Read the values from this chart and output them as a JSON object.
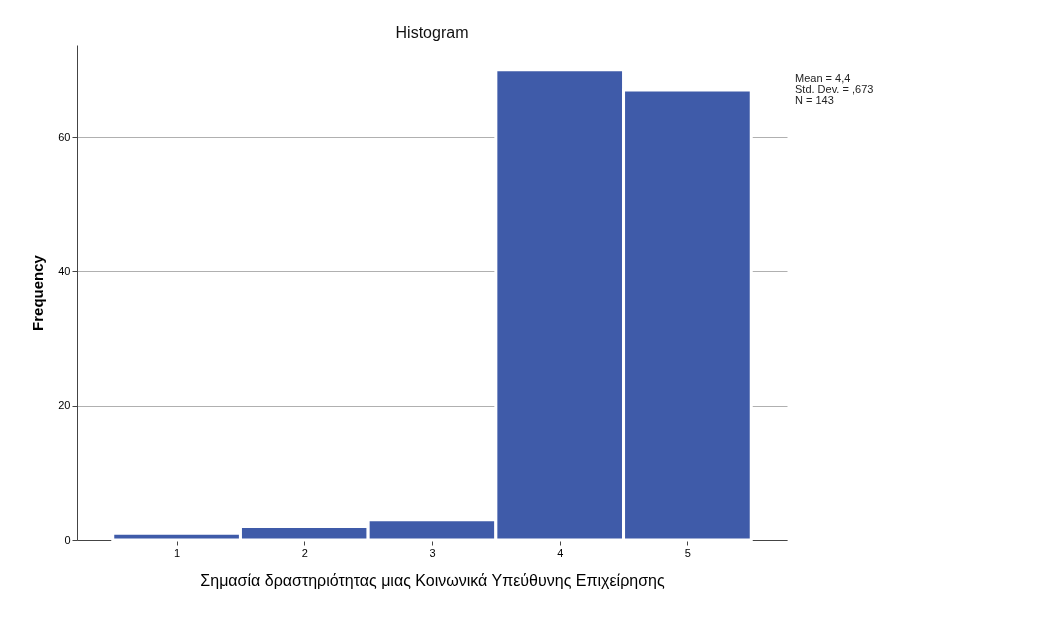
{
  "chart_data": {
    "type": "histogram",
    "title": "Histogram",
    "xlabel": "Σημασία δραστηριότητας μιας Κοινωνικά Υπεύθυνης Επιχείρησης",
    "ylabel": "Frequency",
    "bins": [
      0.5,
      1.5,
      2.5,
      3.5,
      4.5,
      5.5
    ],
    "values": [
      1,
      2,
      3,
      70,
      67
    ],
    "color": "#3f5ba9",
    "xlim": [
      0.22,
      5.78
    ],
    "xticks": [
      1,
      2,
      3,
      4,
      5
    ],
    "ylim": [
      0,
      73.7
    ],
    "yticks": [
      0,
      20,
      40,
      60
    ],
    "grid": "y",
    "annotations": [
      "Mean = 4,4",
      "Std. Dev. = ,673",
      "N = 143"
    ]
  }
}
